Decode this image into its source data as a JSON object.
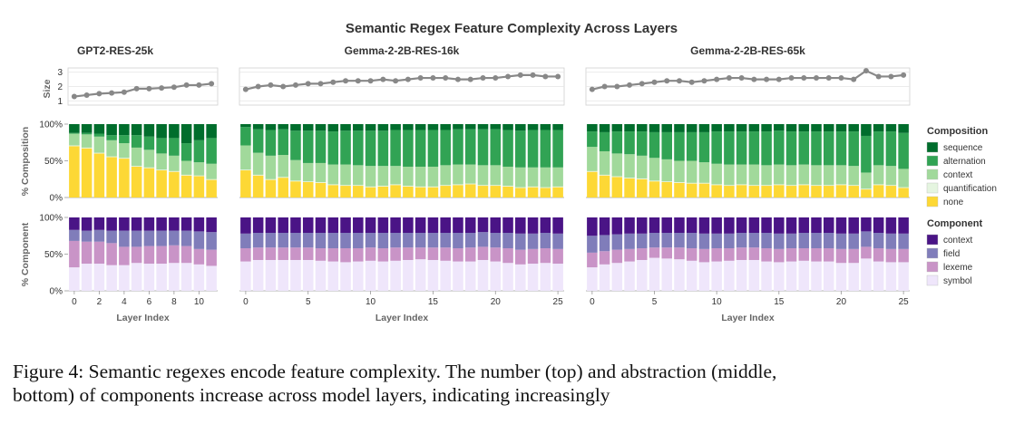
{
  "figure": {
    "title": "Semantic Regex Feature Complexity Across Layers",
    "caption_line1": "Figure 4:   Semantic regexes encode feature complexity. The number (top) and abstraction (middle,",
    "caption_line2": "bottom) of components increase across model layers, indicating increasingly"
  },
  "axes": {
    "size_label": "Size",
    "composition_label": "% Composition",
    "component_label": "% Component",
    "x_label": "Layer Index",
    "size_ticks": [
      "1",
      "2",
      "3"
    ],
    "pct_ticks": [
      "0%",
      "50%",
      "100%"
    ]
  },
  "legends": {
    "composition": {
      "title": "Composition",
      "items": [
        {
          "label": "sequence",
          "color": "#006d2c"
        },
        {
          "label": "alternation",
          "color": "#31a354"
        },
        {
          "label": "context",
          "color": "#a1d99b"
        },
        {
          "label": "quantification",
          "color": "#e5f5e0"
        },
        {
          "label": "none",
          "color": "#fdd835"
        }
      ]
    },
    "component": {
      "title": "Component",
      "items": [
        {
          "label": "context",
          "color": "#4a1486"
        },
        {
          "label": "field",
          "color": "#807dba"
        },
        {
          "label": "lexeme",
          "color": "#c994c7"
        },
        {
          "label": "symbol",
          "color": "#efe6fb"
        }
      ]
    }
  },
  "chart_data": [
    {
      "type": "bar",
      "title": "GPT2-RES-25k",
      "x": [
        0,
        1,
        2,
        3,
        4,
        5,
        6,
        7,
        8,
        9,
        10,
        11
      ],
      "x_ticks": [
        0,
        2,
        4,
        6,
        8,
        10
      ],
      "size": [
        1.3,
        1.4,
        1.5,
        1.55,
        1.6,
        1.85,
        1.85,
        1.9,
        1.95,
        2.1,
        2.1,
        2.2
      ],
      "size_ylim": [
        0.7,
        3.3
      ],
      "composition": {
        "none": [
          70,
          67,
          60,
          55,
          53,
          42,
          40,
          37,
          35,
          30,
          29,
          24
        ],
        "quantification": [
          1,
          1,
          1,
          1,
          1,
          1,
          1,
          1,
          1,
          1,
          1,
          1
        ],
        "context": [
          16,
          18,
          22,
          22,
          20,
          25,
          24,
          22,
          21,
          19,
          18,
          21
        ],
        "alternation": [
          1,
          2,
          4,
          7,
          11,
          17,
          18,
          21,
          24,
          24,
          30,
          35
        ],
        "sequence": [
          12,
          12,
          13,
          15,
          15,
          15,
          17,
          19,
          19,
          26,
          22,
          19
        ]
      },
      "component": {
        "symbol": [
          32,
          37,
          37,
          35,
          35,
          38,
          37,
          37,
          38,
          38,
          36,
          34
        ],
        "lexeme": [
          36,
          30,
          30,
          30,
          25,
          22,
          24,
          24,
          24,
          23,
          21,
          22
        ],
        "field": [
          15,
          15,
          16,
          17,
          22,
          22,
          21,
          21,
          20,
          21,
          24,
          24
        ],
        "context": [
          17,
          18,
          17,
          18,
          18,
          18,
          18,
          18,
          18,
          18,
          19,
          20
        ]
      }
    },
    {
      "type": "bar",
      "title": "Gemma-2-2B-RES-16k",
      "x": [
        0,
        1,
        2,
        3,
        4,
        5,
        6,
        7,
        8,
        9,
        10,
        11,
        12,
        13,
        14,
        15,
        16,
        17,
        18,
        19,
        20,
        21,
        22,
        23,
        24,
        25
      ],
      "x_ticks": [
        0,
        5,
        10,
        15,
        20,
        25
      ],
      "size": [
        1.8,
        2.0,
        2.1,
        2.0,
        2.1,
        2.2,
        2.2,
        2.3,
        2.4,
        2.4,
        2.4,
        2.5,
        2.4,
        2.5,
        2.6,
        2.6,
        2.6,
        2.5,
        2.5,
        2.6,
        2.6,
        2.7,
        2.8,
        2.8,
        2.7,
        2.7
      ],
      "size_ylim": [
        0.7,
        3.3
      ],
      "composition": {
        "none": [
          37,
          30,
          24,
          27,
          22,
          21,
          20,
          17,
          16,
          16,
          14,
          15,
          17,
          15,
          14,
          14,
          16,
          17,
          18,
          16,
          16,
          15,
          13,
          14,
          13,
          14
        ],
        "quantification": [
          1,
          1,
          1,
          1,
          1,
          1,
          1,
          1,
          1,
          1,
          1,
          1,
          1,
          1,
          1,
          1,
          1,
          1,
          1,
          1,
          1,
          1,
          1,
          1,
          1,
          1
        ],
        "context": [
          33,
          30,
          32,
          30,
          28,
          25,
          26,
          27,
          28,
          27,
          28,
          27,
          25,
          26,
          27,
          27,
          27,
          27,
          26,
          27,
          27,
          26,
          27,
          26,
          27,
          26
        ],
        "alternation": [
          25,
          32,
          35,
          35,
          40,
          44,
          44,
          45,
          46,
          47,
          48,
          48,
          49,
          50,
          50,
          50,
          48,
          48,
          48,
          49,
          49,
          50,
          50,
          51,
          51,
          51
        ],
        "sequence": [
          4,
          7,
          8,
          7,
          9,
          9,
          9,
          10,
          9,
          9,
          9,
          9,
          8,
          8,
          8,
          8,
          8,
          7,
          7,
          7,
          7,
          8,
          9,
          8,
          8,
          8
        ]
      },
      "component": {
        "symbol": [
          40,
          42,
          42,
          42,
          42,
          42,
          41,
          40,
          39,
          40,
          41,
          40,
          41,
          42,
          43,
          42,
          41,
          40,
          40,
          42,
          40,
          38,
          36,
          37,
          38,
          37
        ],
        "lexeme": [
          18,
          17,
          17,
          17,
          17,
          17,
          17,
          18,
          19,
          18,
          18,
          18,
          18,
          17,
          16,
          17,
          18,
          18,
          19,
          18,
          19,
          20,
          20,
          20,
          20,
          20
        ],
        "field": [
          20,
          20,
          20,
          20,
          20,
          20,
          21,
          21,
          21,
          21,
          20,
          21,
          20,
          20,
          20,
          20,
          20,
          21,
          20,
          20,
          20,
          21,
          22,
          21,
          21,
          21
        ],
        "context": [
          22,
          21,
          21,
          21,
          21,
          21,
          21,
          21,
          21,
          21,
          21,
          21,
          21,
          21,
          21,
          21,
          21,
          21,
          21,
          20,
          21,
          21,
          22,
          22,
          21,
          22
        ]
      }
    },
    {
      "type": "bar",
      "title": "Gemma-2-2B-RES-65k",
      "x": [
        0,
        1,
        2,
        3,
        4,
        5,
        6,
        7,
        8,
        9,
        10,
        11,
        12,
        13,
        14,
        15,
        16,
        17,
        18,
        19,
        20,
        21,
        22,
        23,
        24,
        25
      ],
      "x_ticks": [
        0,
        5,
        10,
        15,
        20,
        25
      ],
      "size": [
        1.8,
        2.0,
        2.0,
        2.1,
        2.2,
        2.3,
        2.4,
        2.4,
        2.3,
        2.4,
        2.5,
        2.6,
        2.6,
        2.5,
        2.5,
        2.5,
        2.6,
        2.6,
        2.6,
        2.6,
        2.6,
        2.5,
        3.1,
        2.7,
        2.7,
        2.8
      ],
      "size_ylim": [
        0.7,
        3.3
      ],
      "composition": {
        "none": [
          35,
          30,
          28,
          26,
          25,
          22,
          21,
          20,
          19,
          19,
          17,
          16,
          17,
          16,
          16,
          17,
          16,
          17,
          16,
          16,
          17,
          16,
          11,
          17,
          16,
          13
        ],
        "quantification": [
          1,
          1,
          1,
          1,
          1,
          1,
          1,
          1,
          1,
          1,
          1,
          1,
          1,
          1,
          1,
          1,
          1,
          1,
          1,
          1,
          1,
          1,
          1,
          1,
          1,
          1
        ],
        "context": [
          33,
          32,
          31,
          32,
          31,
          31,
          30,
          29,
          30,
          28,
          28,
          28,
          27,
          28,
          27,
          27,
          27,
          27,
          27,
          27,
          26,
          26,
          22,
          26,
          26,
          25
        ],
        "alternation": [
          21,
          26,
          30,
          31,
          33,
          35,
          37,
          39,
          39,
          41,
          44,
          45,
          45,
          45,
          46,
          46,
          46,
          45,
          46,
          46,
          46,
          47,
          50,
          46,
          47,
          49
        ],
        "sequence": [
          10,
          11,
          10,
          10,
          10,
          11,
          11,
          11,
          11,
          11,
          10,
          10,
          10,
          10,
          10,
          9,
          10,
          10,
          10,
          10,
          10,
          10,
          16,
          10,
          10,
          12
        ]
      },
      "component": {
        "symbol": [
          32,
          36,
          38,
          40,
          42,
          45,
          44,
          43,
          41,
          39,
          40,
          41,
          42,
          42,
          40,
          39,
          40,
          41,
          40,
          40,
          38,
          38,
          44,
          40,
          39,
          39
        ],
        "lexeme": [
          20,
          18,
          18,
          17,
          16,
          14,
          15,
          16,
          17,
          18,
          18,
          17,
          17,
          17,
          18,
          18,
          18,
          17,
          18,
          18,
          19,
          19,
          16,
          18,
          18,
          18
        ],
        "field": [
          23,
          22,
          21,
          21,
          20,
          20,
          20,
          20,
          21,
          21,
          20,
          20,
          20,
          20,
          21,
          21,
          20,
          21,
          21,
          21,
          21,
          21,
          21,
          21,
          21,
          21
        ],
        "context": [
          25,
          24,
          23,
          22,
          22,
          21,
          21,
          21,
          21,
          22,
          22,
          22,
          21,
          21,
          21,
          22,
          22,
          21,
          21,
          21,
          22,
          22,
          19,
          21,
          22,
          22
        ]
      }
    }
  ]
}
